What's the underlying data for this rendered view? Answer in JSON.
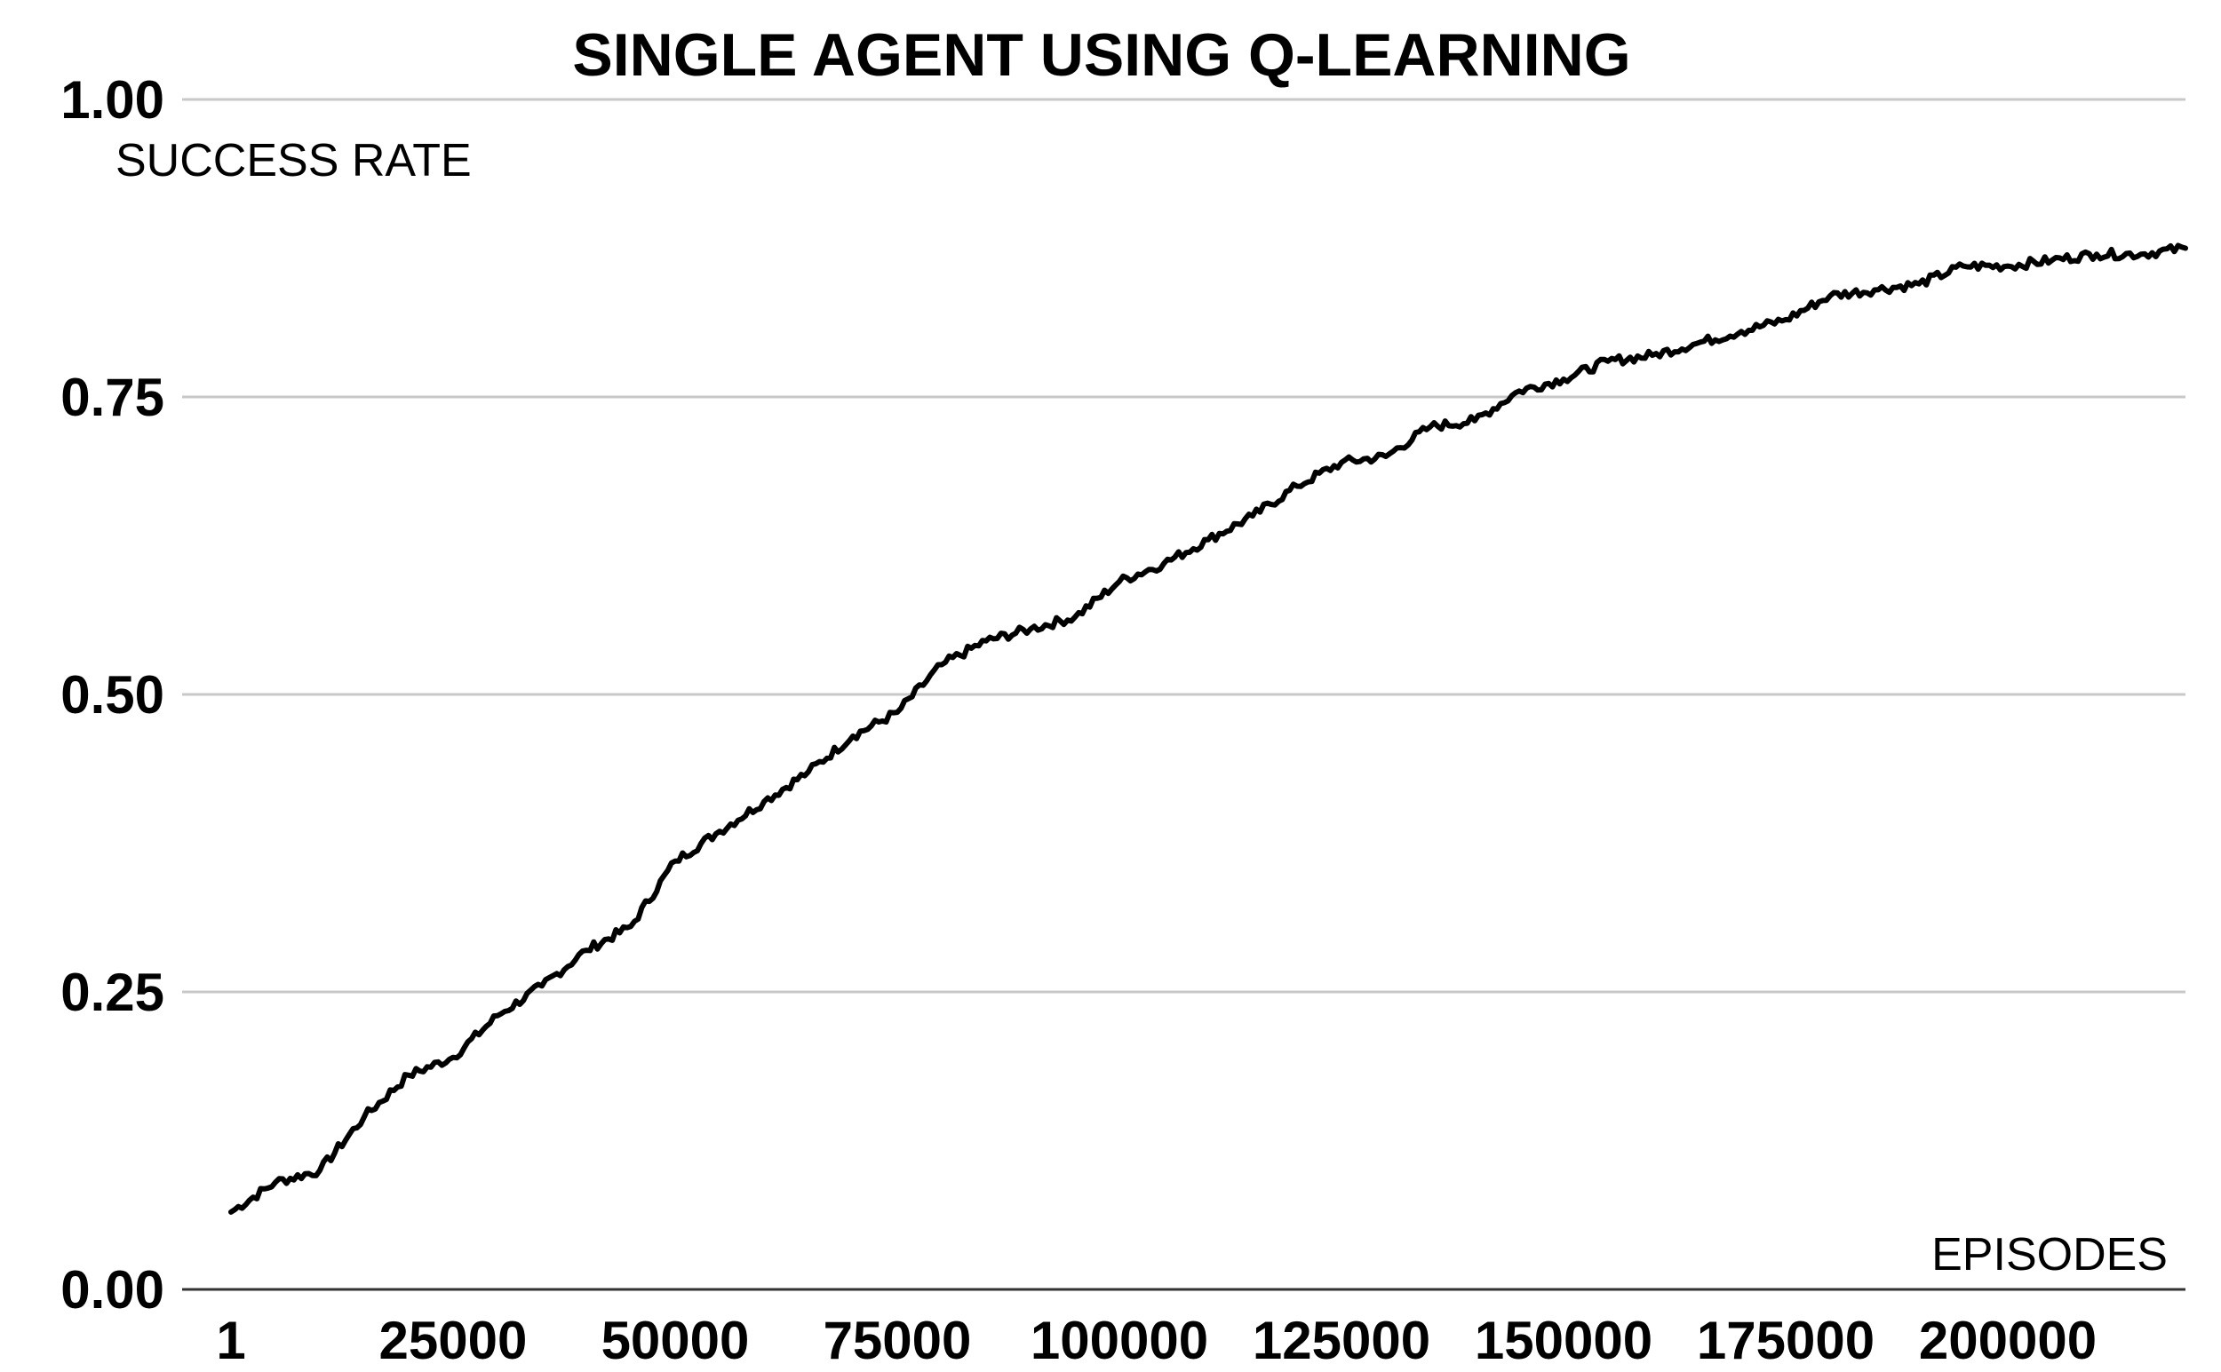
{
  "chart_data": {
    "type": "line",
    "title": "SINGLE AGENT USING Q-LEARNING",
    "ylabel": "SUCCESS RATE",
    "xlabel": "EPISODES",
    "xlim": [
      1,
      220000
    ],
    "ylim": [
      0,
      1
    ],
    "grid": true,
    "y_ticks": [
      "1.00",
      "0.75",
      "0.50",
      "0.25",
      "0.00"
    ],
    "x_ticks": [
      "1",
      "25000",
      "50000",
      "75000",
      "100000",
      "125000",
      "150000",
      "175000",
      "200000"
    ],
    "series": [
      {
        "x": [
          1,
          5000,
          10000,
          15000,
          20000,
          25000,
          30000,
          35000,
          40000,
          45000,
          50000,
          55000,
          60000,
          65000,
          70000,
          75000,
          80000,
          85000,
          90000,
          95000,
          100000,
          105000,
          110000,
          115000,
          120000,
          125000,
          130000,
          135000,
          140000,
          145000,
          150000,
          155000,
          160000,
          165000,
          170000,
          175000,
          180000,
          185000,
          190000,
          195000,
          200000,
          205000,
          210000,
          215000,
          220000
        ],
        "y": [
          0.065,
          0.09,
          0.1,
          0.145,
          0.18,
          0.195,
          0.23,
          0.255,
          0.285,
          0.305,
          0.36,
          0.385,
          0.41,
          0.435,
          0.465,
          0.485,
          0.525,
          0.545,
          0.555,
          0.565,
          0.595,
          0.61,
          0.63,
          0.65,
          0.675,
          0.695,
          0.7,
          0.725,
          0.73,
          0.755,
          0.765,
          0.78,
          0.785,
          0.795,
          0.805,
          0.815,
          0.835,
          0.84,
          0.845,
          0.86,
          0.86,
          0.865,
          0.87,
          0.87,
          0.875
        ]
      }
    ]
  }
}
